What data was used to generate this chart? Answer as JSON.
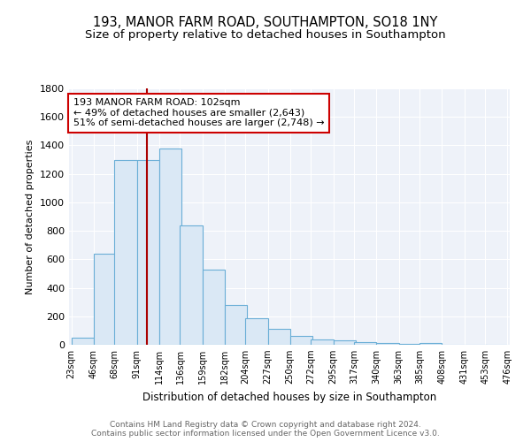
{
  "title": "193, MANOR FARM ROAD, SOUTHAMPTON, SO18 1NY",
  "subtitle": "Size of property relative to detached houses in Southampton",
  "xlabel": "Distribution of detached houses by size in Southampton",
  "ylabel": "Number of detached properties",
  "footnote1": "Contains HM Land Registry data © Crown copyright and database right 2024.",
  "footnote2": "Contains public sector information licensed under the Open Government Licence v3.0.",
  "bar_left_edges": [
    23,
    46,
    68,
    91,
    114,
    136,
    159,
    182,
    204,
    227,
    250,
    272,
    295,
    317,
    340,
    363,
    385,
    408,
    431,
    453
  ],
  "bar_heights": [
    50,
    640,
    1300,
    1300,
    1375,
    840,
    525,
    280,
    185,
    110,
    65,
    35,
    30,
    20,
    12,
    8,
    15,
    2,
    2,
    2
  ],
  "bin_width": 23,
  "bar_facecolor": "#dae8f5",
  "bar_edgecolor": "#6aaed6",
  "tick_labels": [
    "23sqm",
    "46sqm",
    "68sqm",
    "91sqm",
    "114sqm",
    "136sqm",
    "159sqm",
    "182sqm",
    "204sqm",
    "227sqm",
    "250sqm",
    "272sqm",
    "295sqm",
    "317sqm",
    "340sqm",
    "363sqm",
    "385sqm",
    "408sqm",
    "431sqm",
    "453sqm",
    "476sqm"
  ],
  "vline_x": 102,
  "vline_color": "#aa0000",
  "annotation_line1": "193 MANOR FARM ROAD: 102sqm",
  "annotation_line2": "← 49% of detached houses are smaller (2,643)",
  "annotation_line3": "51% of semi-detached houses are larger (2,748) →",
  "ylim": [
    0,
    1800
  ],
  "bg_color": "#eef2f9",
  "grid_color": "#ffffff",
  "title_fontsize": 10.5,
  "subtitle_fontsize": 9.5,
  "annotation_fontsize": 8,
  "xlabel_fontsize": 8.5,
  "ylabel_fontsize": 8,
  "footnote_fontsize": 6.5,
  "tick_fontsize": 7
}
